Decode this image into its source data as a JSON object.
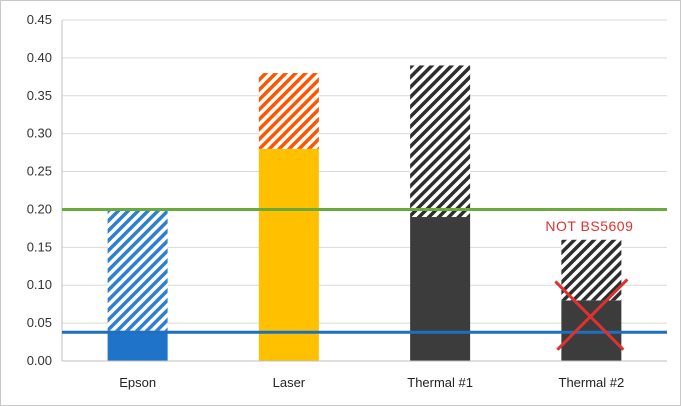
{
  "chart_data": {
    "type": "bar",
    "stacked": true,
    "title": "",
    "xlabel": "",
    "ylabel": "",
    "ylim": [
      0,
      0.45
    ],
    "yticks": [
      "0.00",
      "0.05",
      "0.10",
      "0.15",
      "0.20",
      "0.25",
      "0.30",
      "0.35",
      "0.40",
      "0.45"
    ],
    "grid": true,
    "legend": "none",
    "categories": [
      "Epson",
      "Laser",
      "Thermal #1",
      "Thermal #2"
    ],
    "bars": [
      {
        "category": "Epson",
        "base": 0.04,
        "total": 0.2,
        "base_color": "#1f73c9",
        "top_color": "#2f7fd0",
        "top_style": "hatched"
      },
      {
        "category": "Laser",
        "base": 0.28,
        "total": 0.38,
        "base_color": "#ffc000",
        "top_color": "#ff5500",
        "top_style": "hatched"
      },
      {
        "category": "Thermal #1",
        "base": 0.19,
        "total": 0.39,
        "base_color": "#3c3c3c",
        "top_color": "#2e2e2e",
        "top_style": "hatched"
      },
      {
        "category": "Thermal #2",
        "base": 0.08,
        "total": 0.16,
        "base_color": "#3c3c3c",
        "top_color": "#2e2e2e",
        "top_style": "hatched"
      }
    ],
    "reference_lines": [
      {
        "value": 0.2,
        "color": "#6aaa3a"
      },
      {
        "value": 0.038,
        "color": "#1f6fbf"
      }
    ],
    "annotations": [
      {
        "text": "NOT BS5609",
        "category": "Thermal #2",
        "color": "#e03131",
        "cross_out": true
      }
    ]
  }
}
